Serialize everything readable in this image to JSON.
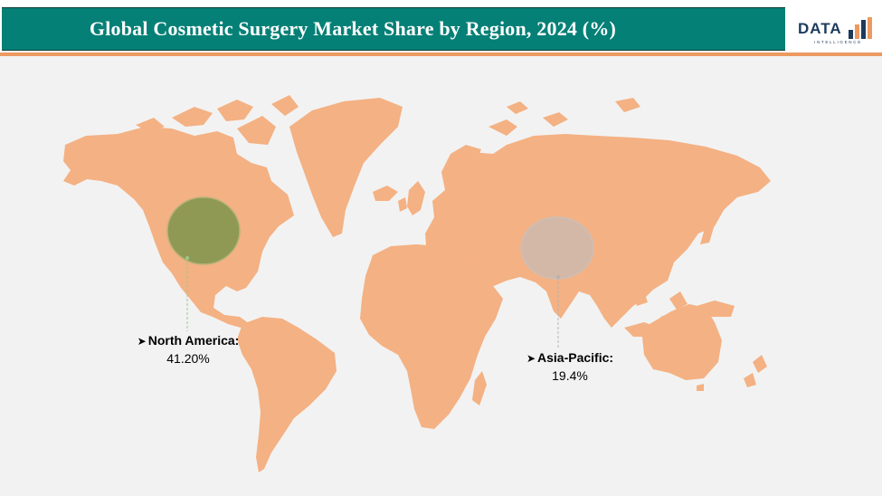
{
  "header": {
    "title": "Global Cosmetic Surgery Market Share by Region, 2024 (%)",
    "logo_main": "DATA",
    "logo_sub": "INTELLIGENCE"
  },
  "colors": {
    "title_bar": "#058076",
    "accent_line": "#ec9a61",
    "land": "#f4b183",
    "north_america_bubble": "#8f9954",
    "asia_pacific_bubble": "#d3b8a8",
    "background": "#f2f2f2"
  },
  "chart_data": {
    "type": "map",
    "title": "Global Cosmetic Surgery Market Share by Region, 2024 (%)",
    "regions": [
      {
        "name": "North America:",
        "value": 41.2,
        "value_label": "41.20%"
      },
      {
        "name": "Asia-Pacific:",
        "value": 19.4,
        "value_label": "19.4%"
      }
    ]
  }
}
